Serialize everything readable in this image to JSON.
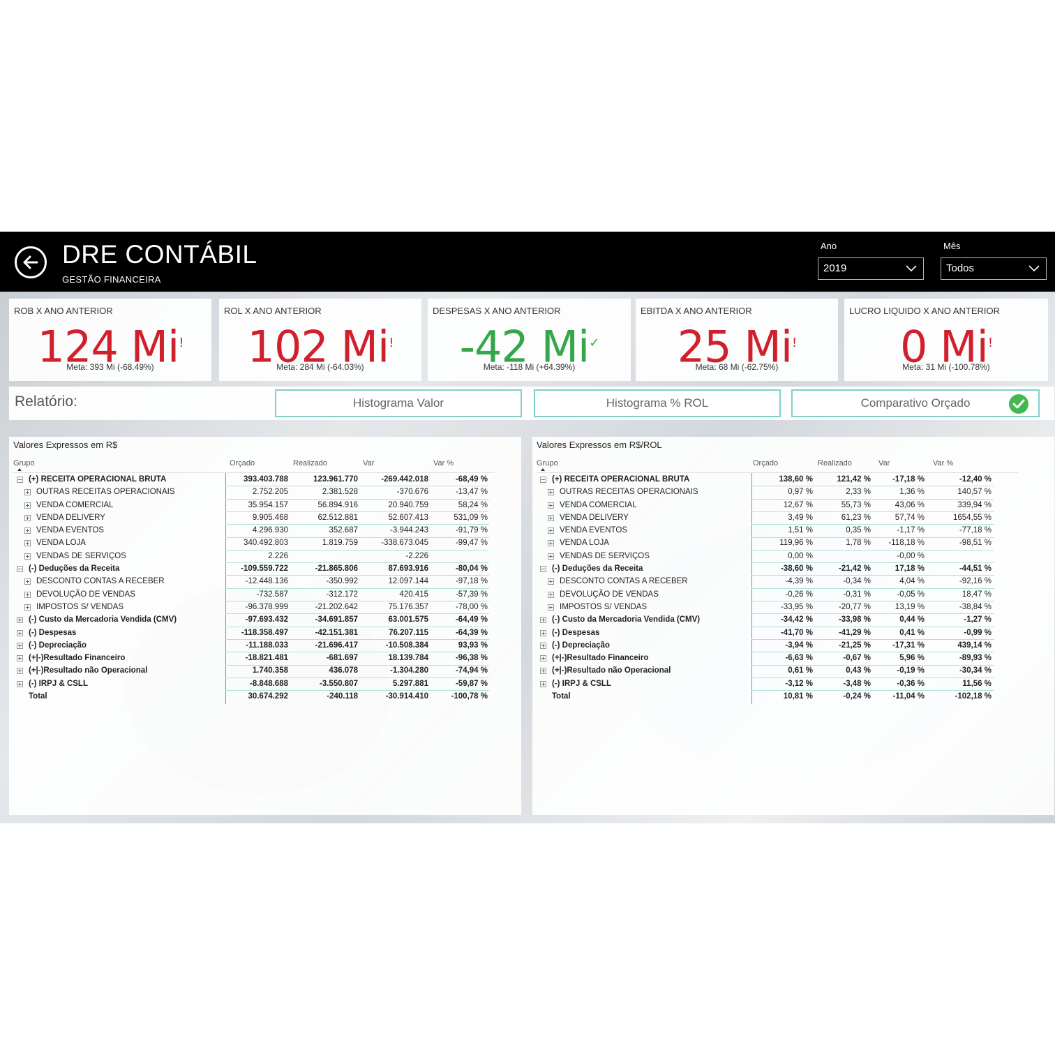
{
  "header": {
    "title": "DRE CONTÁBIL",
    "subtitle": "GESTÃO FINANCEIRA",
    "filters": [
      {
        "label": "Ano",
        "value": "2019"
      },
      {
        "label": "Mês",
        "value": "Todos"
      }
    ]
  },
  "kpis": [
    {
      "title": "ROB X ANO ANTERIOR",
      "value": "124 Mi",
      "mark": "!",
      "meta": "Meta: 393 Mi (-68.49%)",
      "status": "bad"
    },
    {
      "title": "ROL X ANO ANTERIOR",
      "value": "102 Mi",
      "mark": "!",
      "meta": "Meta: 284 Mi (-64.03%)",
      "status": "bad"
    },
    {
      "title": "DESPESAS X ANO ANTERIOR",
      "value": "-42 Mi",
      "mark": "✓",
      "meta": "Meta: -118 Mi (+64.39%)",
      "status": "good"
    },
    {
      "title": "EBITDA X ANO ANTERIOR",
      "value": "25 Mi",
      "mark": "!",
      "meta": "Meta: 68 Mi (-62.75%)",
      "status": "bad"
    },
    {
      "title": "LUCRO LIQUIDO X ANO ANTERIOR",
      "value": "0 Mi",
      "mark": "!",
      "meta": "Meta: 31 Mi (-100.78%)",
      "status": "bad"
    }
  ],
  "report": {
    "label": "Relatório:",
    "buttons": [
      "Histograma Valor",
      "Histograma % ROL",
      "Comparativo Orçado"
    ]
  },
  "left_table": {
    "title": "Valores Expressos em R$",
    "columns": [
      "Grupo",
      "Orçado",
      "Realizado",
      "Var",
      "Var %"
    ],
    "rows": [
      [
        "(+) RECEITA OPERACIONAL BRUTA",
        "393.403.788",
        "123.961.770",
        "-269.442.018",
        "-68,49 %"
      ],
      [
        "OUTRAS RECEITAS OPERACIONAIS",
        "2.752.205",
        "2.381.528",
        "-370.676",
        "-13,47 %"
      ],
      [
        "VENDA COMERCIAL",
        "35.954.157",
        "56.894.916",
        "20.940.759",
        "58,24 %"
      ],
      [
        "VENDA DELIVERY",
        "9.905.468",
        "62.512.881",
        "52.607.413",
        "531,09 %"
      ],
      [
        "VENDA EVENTOS",
        "4.296.930",
        "352.687",
        "-3.944.243",
        "-91,79 %"
      ],
      [
        "VENDA LOJA",
        "340.492.803",
        "1.819.759",
        "-338.673.045",
        "-99,47 %"
      ],
      [
        "VENDAS DE SERVIÇOS",
        "2.226",
        "",
        "-2.226",
        ""
      ],
      [
        "(-) Deduções da Receita",
        "-109.559.722",
        "-21.865.806",
        "87.693.916",
        "-80,04 %"
      ],
      [
        "DESCONTO CONTAS A RECEBER",
        "-12.448.136",
        "-350.992",
        "12.097.144",
        "-97,18 %"
      ],
      [
        "DEVOLUÇÃO DE VENDAS",
        "-732.587",
        "-312.172",
        "420.415",
        "-57,39 %"
      ],
      [
        "IMPOSTOS S/ VENDAS",
        "-96.378.999",
        "-21.202.642",
        "75.176.357",
        "-78,00 %"
      ],
      [
        "(-) Custo da Mercadoria Vendida (CMV)",
        "-97.693.432",
        "-34.691.857",
        "63.001.575",
        "-64,49 %"
      ],
      [
        "(-) Despesas",
        "-118.358.497",
        "-42.151.381",
        "76.207.115",
        "-64,39 %"
      ],
      [
        "(-) Depreciação",
        "-11.188.033",
        "-21.696.417",
        "-10.508.384",
        "93,93 %"
      ],
      [
        "(+|-)Resultado Financeiro",
        "-18.821.481",
        "-681.697",
        "18.139.784",
        "-96,38 %"
      ],
      [
        "(+|-)Resultado não Operacional",
        "1.740.358",
        "436.078",
        "-1.304.280",
        "-74,94 %"
      ],
      [
        "(-) IRPJ & CSLL",
        "-8.848.688",
        "-3.550.807",
        "5.297.881",
        "-59,87 %"
      ],
      [
        "Total",
        "30.674.292",
        "-240.118",
        "-30.914.410",
        "-100,78 %"
      ]
    ]
  },
  "right_table": {
    "title": "Valores Expressos em R$/ROL",
    "columns": [
      "Grupo",
      "Orçado",
      "Realizado",
      "Var",
      "Var %"
    ],
    "rows": [
      [
        "(+) RECEITA OPERACIONAL BRUTA",
        "138,60 %",
        "121,42 %",
        "-17,18 %",
        "-12,40 %"
      ],
      [
        "OUTRAS RECEITAS OPERACIONAIS",
        "0,97 %",
        "2,33 %",
        "1,36 %",
        "140,57 %"
      ],
      [
        "VENDA COMERCIAL",
        "12,67 %",
        "55,73 %",
        "43,06 %",
        "339,94 %"
      ],
      [
        "VENDA DELIVERY",
        "3,49 %",
        "61,23 %",
        "57,74 %",
        "1654,55 %"
      ],
      [
        "VENDA EVENTOS",
        "1,51 %",
        "0,35 %",
        "-1,17 %",
        "-77,18 %"
      ],
      [
        "VENDA LOJA",
        "119,96 %",
        "1,78 %",
        "-118,18 %",
        "-98,51 %"
      ],
      [
        "VENDAS DE SERVIÇOS",
        "0,00 %",
        "",
        "-0,00 %",
        ""
      ],
      [
        "(-) Deduções da Receita",
        "-38,60 %",
        "-21,42 %",
        "17,18 %",
        "-44,51 %"
      ],
      [
        "DESCONTO CONTAS A RECEBER",
        "-4,39 %",
        "-0,34 %",
        "4,04 %",
        "-92,16 %"
      ],
      [
        "DEVOLUÇÃO DE VENDAS",
        "-0,26 %",
        "-0,31 %",
        "-0,05 %",
        "18,47 %"
      ],
      [
        "IMPOSTOS S/ VENDAS",
        "-33,95 %",
        "-20,77 %",
        "13,19 %",
        "-38,84 %"
      ],
      [
        "(-) Custo da Mercadoria Vendida (CMV)",
        "-34,42 %",
        "-33,98 %",
        "0,44 %",
        "-1,27 %"
      ],
      [
        "(-) Despesas",
        "-41,70 %",
        "-41,29 %",
        "0,41 %",
        "-0,99 %"
      ],
      [
        "(-) Depreciação",
        "-3,94 %",
        "-21,25 %",
        "-17,31 %",
        "439,14 %"
      ],
      [
        "(+|-)Resultado Financeiro",
        "-6,63 %",
        "-0,67 %",
        "5,96 %",
        "-89,93 %"
      ],
      [
        "(+|-)Resultado não Operacional",
        "0,61 %",
        "0,43 %",
        "-0,19 %",
        "-30,34 %"
      ],
      [
        "(-) IRPJ & CSLL",
        "-3,12 %",
        "-3,48 %",
        "-0,36 %",
        "11,56 %"
      ],
      [
        "Total",
        "10,81 %",
        "-0,24 %",
        "-11,04 %",
        "-102,18 %"
      ]
    ]
  },
  "colors": {
    "bad": "#d0202c",
    "good": "#35a74a",
    "accent": "#2fb8a8"
  }
}
